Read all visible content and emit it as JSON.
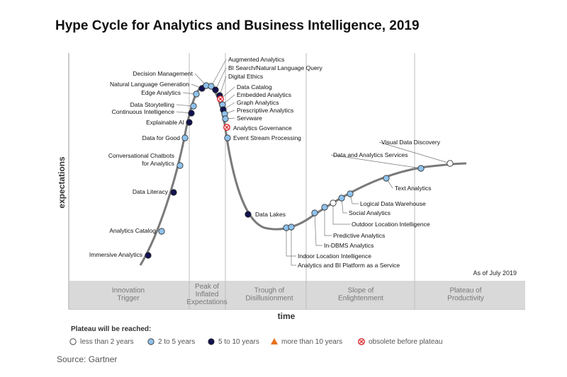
{
  "title": "Hype Cycle for Analytics and Business Intelligence, 2019",
  "y_axis_label": "expectations",
  "x_axis_label": "time",
  "as_of": "As of July 2019",
  "source": "Source: Gartner",
  "colors": {
    "light_blue": "#8fc2ec",
    "dark_navy": "#12124f",
    "orange": "#e8701a",
    "obsolete_red": "#d9252c",
    "curve": "#7a7a7a",
    "phase_band": "#d9d9d9"
  },
  "phases": [
    {
      "lines": [
        "Innovation",
        "Trigger"
      ]
    },
    {
      "lines": [
        "Peak of",
        "Inflated",
        "Expectations"
      ]
    },
    {
      "lines": [
        "Trough of",
        "Disillusionment"
      ]
    },
    {
      "lines": [
        "Slope of",
        "Enlightenment"
      ]
    },
    {
      "lines": [
        "Plateau of",
        "Productivity"
      ]
    }
  ],
  "legend": {
    "heading": "Plateau will be reached:",
    "items": [
      {
        "label": "less than 2 years",
        "symbol": "circle-white"
      },
      {
        "label": "2 to 5 years",
        "symbol": "circle-light"
      },
      {
        "label": "5 to 10 years",
        "symbol": "circle-dark"
      },
      {
        "label": "more than 10 years",
        "symbol": "triangle-orange"
      },
      {
        "label": "obsolete before plateau",
        "symbol": "circle-obsolete"
      }
    ]
  },
  "technologies": [
    {
      "label": "Immersive Analytics",
      "category": "5 to 10 years"
    },
    {
      "label": "Analytics Catalog",
      "category": "2 to 5 years"
    },
    {
      "label": "Data Literacy",
      "category": "5 to 10 years"
    },
    {
      "label": "Conversational Chatbots for Analytics",
      "category": "2 to 5 years"
    },
    {
      "label": "Data for Good",
      "category": "2 to 5 years"
    },
    {
      "label": "Explainable AI",
      "category": "5 to 10 years"
    },
    {
      "label": "Continuous Intelligence",
      "category": "5 to 10 years"
    },
    {
      "label": "Data Storytelling",
      "category": "2 to 5 years"
    },
    {
      "label": "Edge Analytics",
      "category": "2 to 5 years"
    },
    {
      "label": "Natural Language Generation",
      "category": "5 to 10 years"
    },
    {
      "label": "Decision Management",
      "category": "2 to 5 years"
    },
    {
      "label": "Augmented Analytics",
      "category": "2 to 5 years"
    },
    {
      "label": "BI Search/Natural Language Query",
      "category": "5 to 10 years"
    },
    {
      "label": "Digital Ethics",
      "category": "5 to 10 years"
    },
    {
      "label": "Data Catalog",
      "category": "obsolete before plateau"
    },
    {
      "label": "Embedded Analytics",
      "category": "2 to 5 years"
    },
    {
      "label": "Graph Analytics",
      "category": "5 to 10 years"
    },
    {
      "label": "Prescriptive Analytics",
      "category": "2 to 5 years"
    },
    {
      "label": "Servware",
      "category": "2 to 5 years"
    },
    {
      "label": "Analytics Governance",
      "category": "obsolete before plateau"
    },
    {
      "label": "Event Stream Processing",
      "category": "2 to 5 years"
    },
    {
      "label": "Data Lakes",
      "category": "5 to 10 years"
    },
    {
      "label": "Indoor Location Intelligence",
      "category": "2 to 5 years"
    },
    {
      "label": "Analytics and BI Platform as a Service",
      "category": "2 to 5 years"
    },
    {
      "label": "In-DBMS Analytics",
      "category": "2 to 5 years"
    },
    {
      "label": "Predictive Analytics",
      "category": "2 to 5 years"
    },
    {
      "label": "Outdoor Location Intelligence",
      "category": "less than 2 years"
    },
    {
      "label": "Social Analytics",
      "category": "2 to 5 years"
    },
    {
      "label": "Logical Data Warehouse",
      "category": "2 to 5 years"
    },
    {
      "label": "Text Analytics",
      "category": "2 to 5 years"
    },
    {
      "label": "Data and Analytics Services",
      "category": "2 to 5 years"
    },
    {
      "label": "Visual Data Discovery",
      "category": "less than 2 years"
    }
  ]
}
